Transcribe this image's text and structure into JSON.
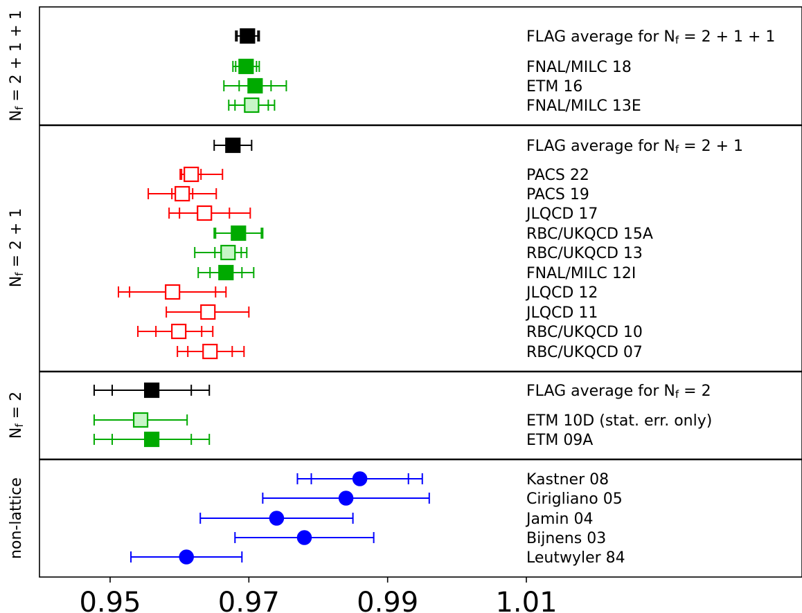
{
  "chart_data": {
    "type": "scatter",
    "xlim": [
      0.94,
      1.04
    ],
    "x_ticks": [
      "0.95",
      "0.97",
      "0.99",
      "1.01"
    ],
    "x_tick_values": [
      0.95,
      0.97,
      0.99,
      1.01
    ],
    "grid": false,
    "colors": {
      "average": "#000000",
      "green": "#00aa00",
      "green_light": "#c8f5c8",
      "red": "#ff0000",
      "blue": "#0000ff"
    },
    "groups": [
      {
        "id": "nf2p1p1",
        "label_main": "N",
        "label_sub": "f",
        "label_rest": " = 2 + 1 + 1",
        "rows": [
          {
            "label": "FLAG average for N",
            "label_sub": "f",
            "label_rest": " = 2 + 1 + 1",
            "value": 0.9698,
            "err_tot": [
              0.9681,
              0.9715
            ],
            "err_stat": [
              0.9683,
              0.9713
            ],
            "marker": "square",
            "style": "filled",
            "color": "#000000"
          },
          {
            "spacer": true
          },
          {
            "label": "FNAL/MILC 18",
            "value": 0.9696,
            "err_tot": [
              0.9677,
              0.9715
            ],
            "err_stat": [
              0.9681,
              0.9711
            ],
            "marker": "square",
            "style": "filled",
            "color": "#00aa00"
          },
          {
            "label": "ETM 16",
            "value": 0.9709,
            "err_tot": [
              0.9664,
              0.9754
            ],
            "err_stat": [
              0.9686,
              0.9732
            ],
            "marker": "square",
            "style": "filled",
            "color": "#00aa00"
          },
          {
            "label": "FNAL/MILC 13E",
            "value": 0.9704,
            "err_tot": [
              0.9671,
              0.9737
            ],
            "err_stat": [
              0.968,
              0.9728
            ],
            "marker": "square",
            "style": "light",
            "color": "#00aa00"
          }
        ]
      },
      {
        "id": "nf2p1",
        "label_main": "N",
        "label_sub": "f",
        "label_rest": " = 2 + 1",
        "rows": [
          {
            "label": "FLAG average for N",
            "label_sub": "f",
            "label_rest": " = 2 + 1",
            "value": 0.9677,
            "err_tot": [
              0.965,
              0.9704
            ],
            "err_stat": [
              0.965,
              0.9704
            ],
            "marker": "square",
            "style": "filled",
            "color": "#000000"
          },
          {
            "spacer": true
          },
          {
            "label": "PACS 22",
            "value": 0.9617,
            "err_tot": [
              0.9601,
              0.9662
            ],
            "err_stat": [
              0.9603,
              0.9631
            ],
            "marker": "square",
            "style": "open",
            "color": "#ff0000"
          },
          {
            "label": "PACS 19",
            "value": 0.9604,
            "err_tot": [
              0.9555,
              0.9653
            ],
            "err_stat": [
              0.9589,
              0.9619
            ],
            "marker": "square",
            "style": "open",
            "color": "#ff0000"
          },
          {
            "label": "JLQCD 17",
            "value": 0.9636,
            "err_tot": [
              0.9585,
              0.9702
            ],
            "err_stat": [
              0.96,
              0.9672
            ],
            "marker": "square",
            "style": "open",
            "color": "#ff0000"
          },
          {
            "label": "RBC/UKQCD 15A",
            "value": 0.9685,
            "err_tot": [
              0.965,
              0.972
            ],
            "err_stat": [
              0.9652,
              0.9718
            ],
            "marker": "square",
            "style": "filled",
            "color": "#00aa00"
          },
          {
            "label": "RBC/UKQCD 13",
            "value": 0.967,
            "err_tot": [
              0.9622,
              0.9697
            ],
            "err_stat": [
              0.9651,
              0.9689
            ],
            "marker": "square",
            "style": "light",
            "color": "#00aa00"
          },
          {
            "label": "FNAL/MILC 12I",
            "value": 0.9667,
            "err_tot": [
              0.9627,
              0.9707
            ],
            "err_stat": [
              0.9644,
              0.969
            ],
            "marker": "square",
            "style": "filled",
            "color": "#00aa00"
          },
          {
            "label": "JLQCD 12",
            "value": 0.959,
            "err_tot": [
              0.9512,
              0.9667
            ],
            "err_stat": [
              0.9528,
              0.9652
            ],
            "marker": "square",
            "style": "open",
            "color": "#ff0000"
          },
          {
            "label": "JLQCD 11",
            "value": 0.9641,
            "err_tot": [
              0.9581,
              0.97
            ],
            "err_stat": [
              0.9581,
              0.97
            ],
            "marker": "square",
            "style": "open",
            "color": "#ff0000"
          },
          {
            "label": "RBC/UKQCD 10",
            "value": 0.9599,
            "err_tot": [
              0.954,
              0.9648
            ],
            "err_stat": [
              0.9566,
              0.9632
            ],
            "marker": "square",
            "style": "open",
            "color": "#ff0000"
          },
          {
            "label": "RBC/UKQCD 07",
            "value": 0.9644,
            "err_tot": [
              0.9597,
              0.9693
            ],
            "err_stat": [
              0.9612,
              0.9676
            ],
            "marker": "square",
            "style": "open",
            "color": "#ff0000"
          }
        ]
      },
      {
        "id": "nf2",
        "label_main": "N",
        "label_sub": "f",
        "label_rest": " = 2",
        "rows": [
          {
            "label": "FLAG average for N",
            "label_sub": "f",
            "label_rest": " = 2",
            "value": 0.956,
            "err_tot": [
              0.9477,
              0.9643
            ],
            "err_stat": [
              0.9503,
              0.9617
            ],
            "marker": "square",
            "style": "filled",
            "color": "#000000"
          },
          {
            "spacer": true
          },
          {
            "label": "ETM 10D (stat. err. only)",
            "value": 0.9544,
            "err_tot": [
              0.9477,
              0.9611
            ],
            "err_stat": [
              0.9477,
              0.9611
            ],
            "marker": "square",
            "style": "light",
            "color": "#00aa00"
          },
          {
            "label": "ETM 09A",
            "value": 0.956,
            "err_tot": [
              0.9477,
              0.9643
            ],
            "err_stat": [
              0.9503,
              0.9617
            ],
            "marker": "square",
            "style": "filled",
            "color": "#00aa00"
          }
        ]
      },
      {
        "id": "nonlattice",
        "label_main": "non-lattice",
        "label_sub": "",
        "label_rest": "",
        "rows": [
          {
            "label": "Kastner 08",
            "value": 0.986,
            "err_tot": [
              0.977,
              0.995
            ],
            "err_stat": [
              0.979,
              0.993
            ],
            "marker": "circle",
            "style": "filled",
            "color": "#0000ff"
          },
          {
            "label": "Cirigliano 05",
            "value": 0.984,
            "err_tot": [
              0.972,
              0.996
            ],
            "err_stat": [
              0.972,
              0.996
            ],
            "marker": "circle",
            "style": "filled",
            "color": "#0000ff"
          },
          {
            "label": "Jamin 04",
            "value": 0.974,
            "err_tot": [
              0.963,
              0.985
            ],
            "err_stat": [
              0.963,
              0.985
            ],
            "marker": "circle",
            "style": "filled",
            "color": "#0000ff"
          },
          {
            "label": "Bijnens 03",
            "value": 0.978,
            "err_tot": [
              0.968,
              0.988
            ],
            "err_stat": [
              0.968,
              0.988
            ],
            "marker": "circle",
            "style": "filled",
            "color": "#0000ff"
          },
          {
            "label": "Leutwyler 84",
            "value": 0.961,
            "err_tot": [
              0.953,
              0.969
            ],
            "err_stat": [
              0.953,
              0.969
            ],
            "marker": "circle",
            "style": "filled",
            "color": "#0000ff"
          }
        ]
      }
    ]
  }
}
